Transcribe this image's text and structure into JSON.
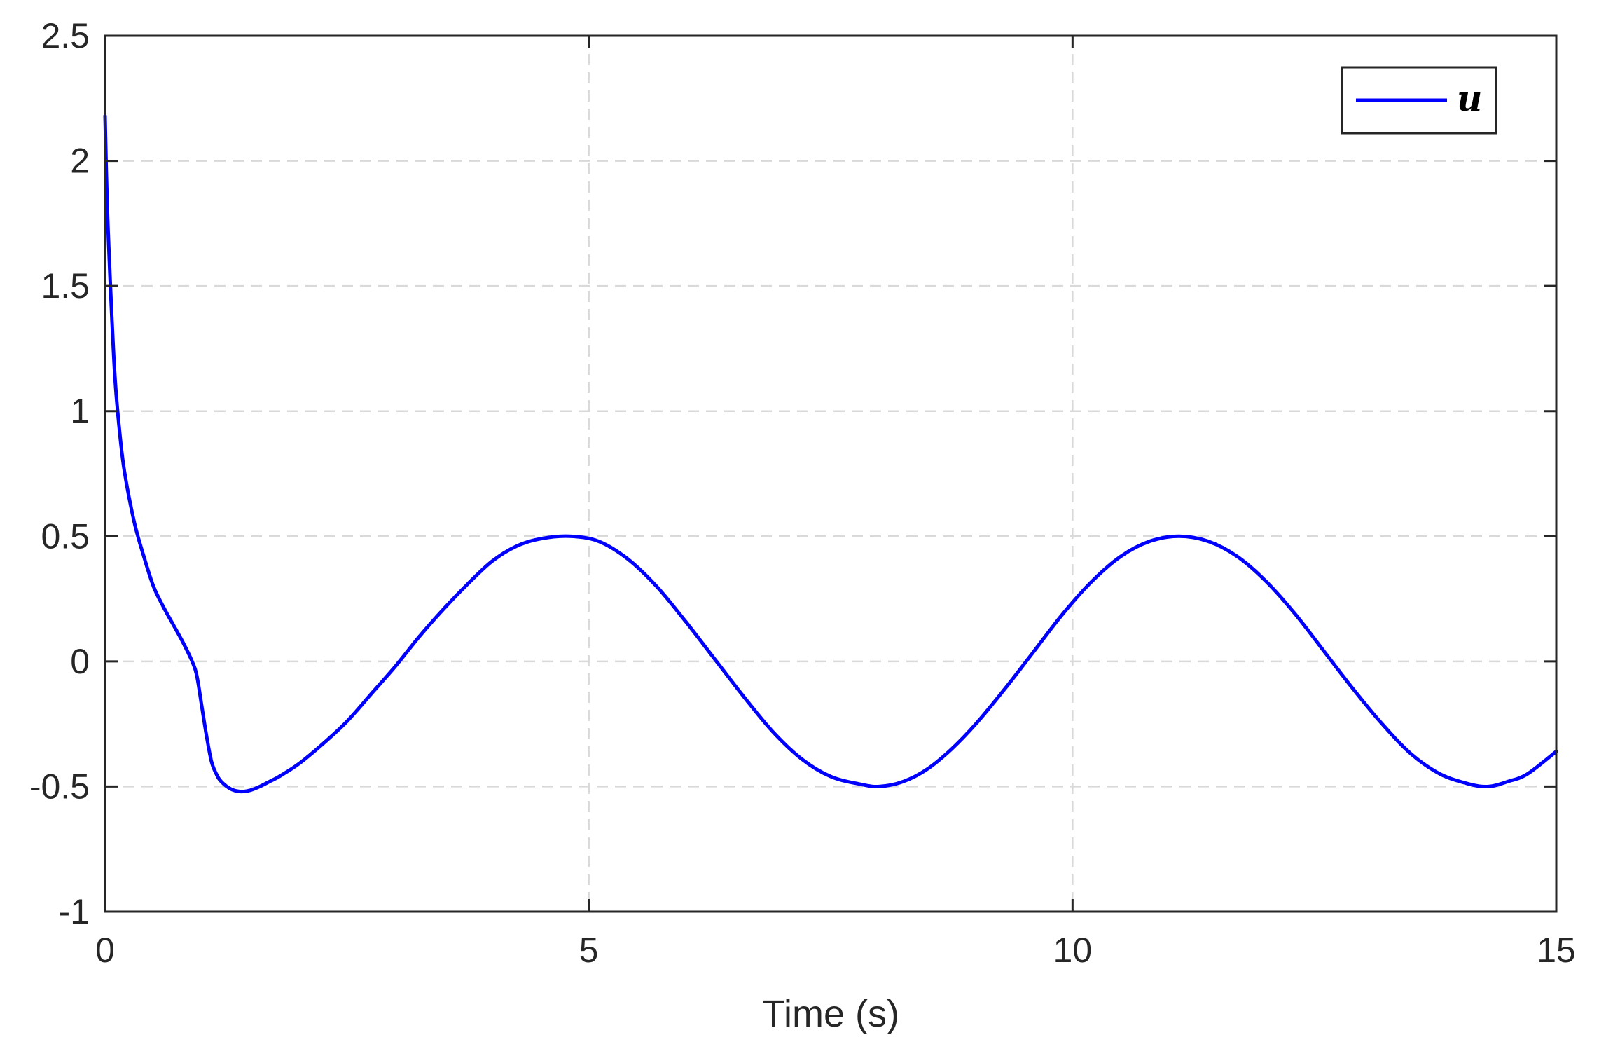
{
  "chart_data": {
    "type": "line",
    "title": "",
    "xlabel": "Time (s)",
    "ylabel": "",
    "xlim": [
      0,
      15
    ],
    "ylim": [
      -1,
      2.5
    ],
    "xticks": [
      0,
      5,
      10,
      15
    ],
    "xtick_labels": [
      "0",
      "5",
      "10",
      "15"
    ],
    "yticks": [
      -1,
      -0.5,
      0,
      0.5,
      1,
      1.5,
      2,
      2.5
    ],
    "ytick_labels": [
      "-1",
      "-0.5",
      "0",
      "0.5",
      "1",
      "1.5",
      "2",
      "2.5"
    ],
    "grid": true,
    "legend_position": "top-right",
    "series": [
      {
        "name": "u",
        "color": "#0000ff",
        "x": [
          0,
          0.02,
          0.05,
          0.1,
          0.15,
          0.2,
          0.3,
          0.4,
          0.5,
          0.6,
          0.7,
          0.8,
          0.9,
          0.95,
          1.0,
          1.05,
          1.1,
          1.15,
          1.2,
          1.3,
          1.4,
          1.5,
          1.6,
          1.7,
          1.8,
          2.0,
          2.25,
          2.5,
          2.75,
          3.0,
          3.25,
          3.5,
          3.75,
          4.0,
          4.25,
          4.5,
          4.8,
          5.1,
          5.4,
          5.7,
          6.0,
          6.3,
          6.6,
          6.9,
          7.2,
          7.5,
          7.8,
          8.0,
          8.25,
          8.5,
          8.75,
          9.0,
          9.3,
          9.6,
          9.9,
          10.2,
          10.5,
          10.8,
          11.1,
          11.4,
          11.7,
          12.0,
          12.3,
          12.6,
          12.9,
          13.2,
          13.5,
          13.8,
          14.1,
          14.3,
          14.5,
          14.7,
          15.0
        ],
        "y": [
          2.18,
          1.85,
          1.55,
          1.15,
          0.92,
          0.76,
          0.56,
          0.42,
          0.3,
          0.22,
          0.15,
          0.08,
          0.0,
          -0.06,
          -0.18,
          -0.3,
          -0.4,
          -0.45,
          -0.48,
          -0.51,
          -0.52,
          -0.515,
          -0.5,
          -0.48,
          -0.46,
          -0.41,
          -0.33,
          -0.24,
          -0.13,
          -0.02,
          0.1,
          0.21,
          0.31,
          0.4,
          0.46,
          0.49,
          0.5,
          0.48,
          0.41,
          0.3,
          0.16,
          0.01,
          -0.14,
          -0.28,
          -0.39,
          -0.46,
          -0.49,
          -0.5,
          -0.48,
          -0.43,
          -0.35,
          -0.25,
          -0.11,
          0.04,
          0.19,
          0.32,
          0.42,
          0.48,
          0.5,
          0.48,
          0.42,
          0.32,
          0.19,
          0.04,
          -0.11,
          -0.25,
          -0.37,
          -0.45,
          -0.49,
          -0.5,
          -0.48,
          -0.45,
          -0.36
        ]
      }
    ]
  }
}
